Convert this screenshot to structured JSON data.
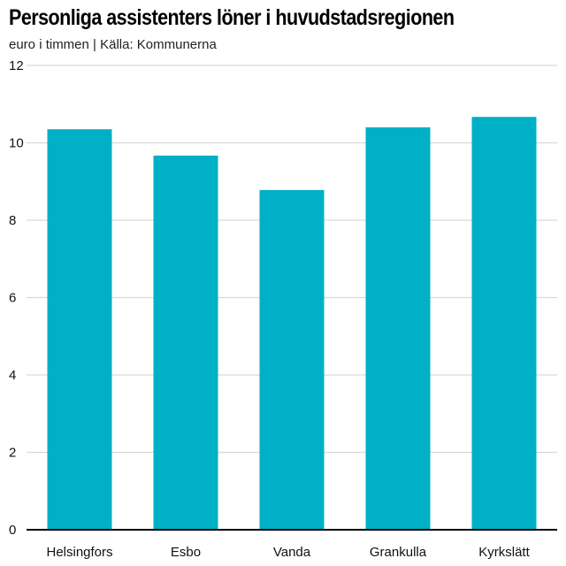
{
  "colors": {
    "bar": "#00b0c6",
    "grid": "#d9d9d9",
    "axis": "#000000"
  },
  "chart_data": {
    "type": "bar",
    "title": "Personliga assistenters löner i huvudstadsregionen",
    "subtitle": "euro i timmen | Källa: Kommunerna",
    "xlabel": "",
    "ylabel": "",
    "categories": [
      "Helsingfors",
      "Esbo",
      "Vanda",
      "Grankulla",
      "Kyrkslätt"
    ],
    "values": [
      10.35,
      9.67,
      8.78,
      10.4,
      10.67
    ],
    "ylim": [
      0,
      12
    ],
    "yticks": [
      0,
      2,
      4,
      6,
      8,
      10,
      12
    ],
    "grid": true,
    "legend": "none"
  }
}
